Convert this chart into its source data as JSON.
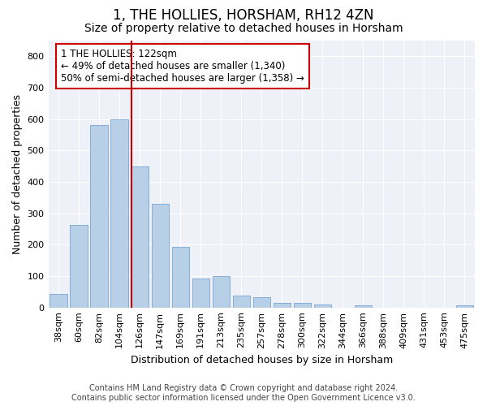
{
  "title": "1, THE HOLLIES, HORSHAM, RH12 4ZN",
  "subtitle": "Size of property relative to detached houses in Horsham",
  "xlabel": "Distribution of detached houses by size in Horsham",
  "ylabel": "Number of detached properties",
  "footer_line1": "Contains HM Land Registry data © Crown copyright and database right 2024.",
  "footer_line2": "Contains public sector information licensed under the Open Government Licence v3.0.",
  "bar_labels": [
    "38sqm",
    "60sqm",
    "82sqm",
    "104sqm",
    "126sqm",
    "147sqm",
    "169sqm",
    "191sqm",
    "213sqm",
    "235sqm",
    "257sqm",
    "278sqm",
    "300sqm",
    "322sqm",
    "344sqm",
    "366sqm",
    "388sqm",
    "409sqm",
    "431sqm",
    "453sqm",
    "475sqm"
  ],
  "bar_values": [
    42,
    263,
    580,
    600,
    450,
    330,
    193,
    92,
    100,
    38,
    33,
    15,
    15,
    10,
    0,
    7,
    0,
    0,
    0,
    0,
    7
  ],
  "bar_color": "#b8cfe8",
  "bar_edgecolor": "#6699cc",
  "vline_x_index": 4,
  "vline_color": "#cc0000",
  "annotation_title": "1 THE HOLLIES: 122sqm",
  "annotation_line1": "← 49% of detached houses are smaller (1,340)",
  "annotation_line2": "50% of semi-detached houses are larger (1,358) →",
  "annotation_box_edgecolor": "#cc0000",
  "ylim": [
    0,
    850
  ],
  "yticks": [
    0,
    100,
    200,
    300,
    400,
    500,
    600,
    700,
    800
  ],
  "fig_bg_color": "#ffffff",
  "plot_bg_color": "#eef2f8",
  "grid_color": "#ffffff",
  "title_fontsize": 12,
  "subtitle_fontsize": 10,
  "axis_label_fontsize": 9,
  "tick_fontsize": 8,
  "annotation_fontsize": 8.5,
  "footer_fontsize": 7
}
